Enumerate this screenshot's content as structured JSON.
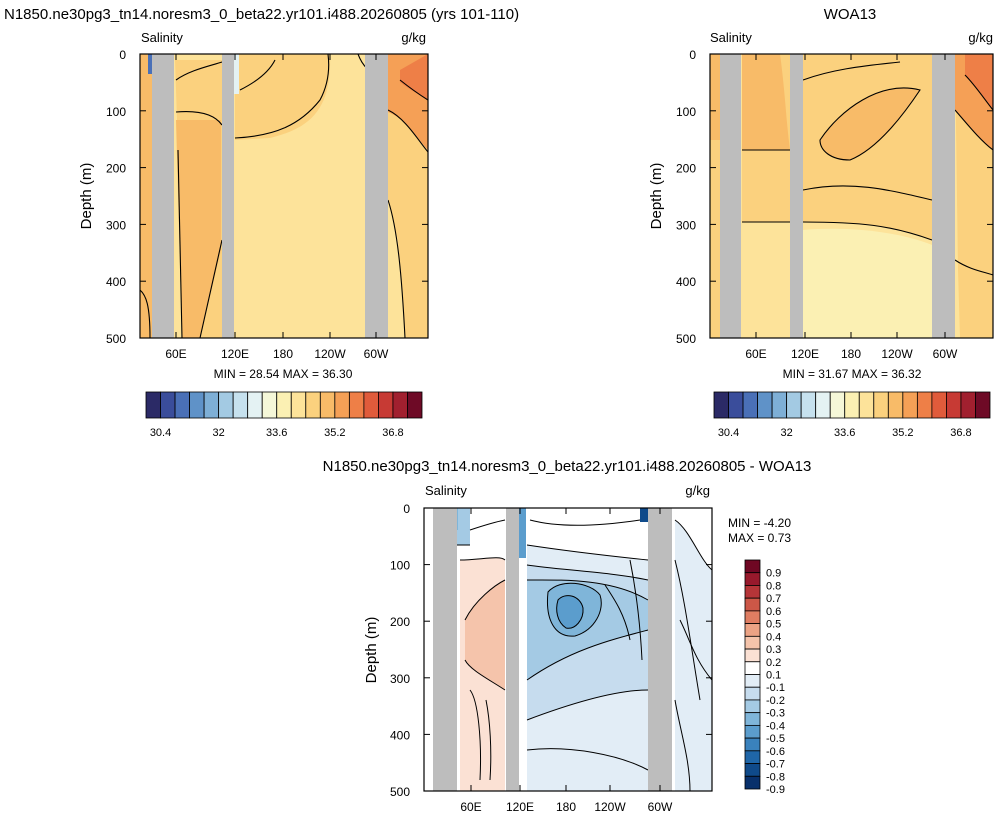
{
  "colors": {
    "salinity_scale": [
      "#2b2a66",
      "#3a4d9b",
      "#4a70b7",
      "#5f92c8",
      "#7eafd6",
      "#a3cae3",
      "#c6e1ee",
      "#e4f2f3",
      "#f5f7d8",
      "#fbf0b3",
      "#fde39a",
      "#fbd17e",
      "#f8bb68",
      "#f5a056",
      "#ee7f47",
      "#e05b3b",
      "#c73a34",
      "#a1202f",
      "#6e0a26"
    ],
    "diff_scale": [
      "#08306b",
      "#0f4a8a",
      "#1f66a8",
      "#3a82bd",
      "#5b9dcd",
      "#7fb5d9",
      "#a4cae4",
      "#c6dcee",
      "#e2edf6",
      "#ffffff",
      "#fbe1d4",
      "#f5c4ab",
      "#eca385",
      "#df7d62",
      "#cc5747",
      "#b63538",
      "#98192c",
      "#6f0723"
    ],
    "land": "#bdbdbd"
  },
  "chart_data": [
    {
      "type": "heatmap",
      "title": "N1850.ne30pg3_tn14.noresm3_0_beta22.yr101.i488.20260805 (yrs 101-110)",
      "left_label": "Salinity",
      "right_label": "g/kg",
      "ylabel": "Depth (m)",
      "xlabel": "",
      "ylim": [
        500,
        0
      ],
      "yticks": [
        "0",
        "100",
        "200",
        "300",
        "400",
        "500"
      ],
      "xticks": [
        "60E",
        "120E",
        "180",
        "120W",
        "60W"
      ],
      "stats": "MIN =  28.54  MAX =  36.30",
      "colorbar_labels": [
        "30.4",
        "32",
        "33.6",
        "35.2",
        "36.8"
      ]
    },
    {
      "type": "heatmap",
      "title": "WOA13",
      "left_label": "Salinity",
      "right_label": "g/kg",
      "ylabel": "Depth (m)",
      "xlabel": "",
      "ylim": [
        500,
        0
      ],
      "yticks": [
        "0",
        "100",
        "200",
        "300",
        "400",
        "500"
      ],
      "xticks": [
        "60E",
        "120E",
        "180",
        "120W",
        "60W"
      ],
      "stats": "MIN =  31.67  MAX =  36.32",
      "colorbar_labels": [
        "30.4",
        "32",
        "33.6",
        "35.2",
        "36.8"
      ]
    },
    {
      "type": "heatmap",
      "title": "N1850.ne30pg3_tn14.noresm3_0_beta22.yr101.i488.20260805 - WOA13",
      "left_label": "Salinity",
      "right_label": "g/kg",
      "ylabel": "Depth (m)",
      "xlabel": "",
      "ylim": [
        500,
        0
      ],
      "yticks": [
        "0",
        "100",
        "200",
        "300",
        "400",
        "500"
      ],
      "xticks": [
        "60E",
        "120E",
        "180",
        "120W",
        "60W"
      ],
      "stats": [
        "MIN =  -4.20",
        "MAX =  0.73"
      ],
      "colorbar_labels": [
        "0.9",
        "0.8",
        "0.7",
        "0.6",
        "0.5",
        "0.4",
        "0.3",
        "0.2",
        "0.1",
        "-0.1",
        "-0.2",
        "-0.3",
        "-0.4",
        "-0.5",
        "-0.6",
        "-0.7",
        "-0.8",
        "-0.9"
      ]
    }
  ]
}
